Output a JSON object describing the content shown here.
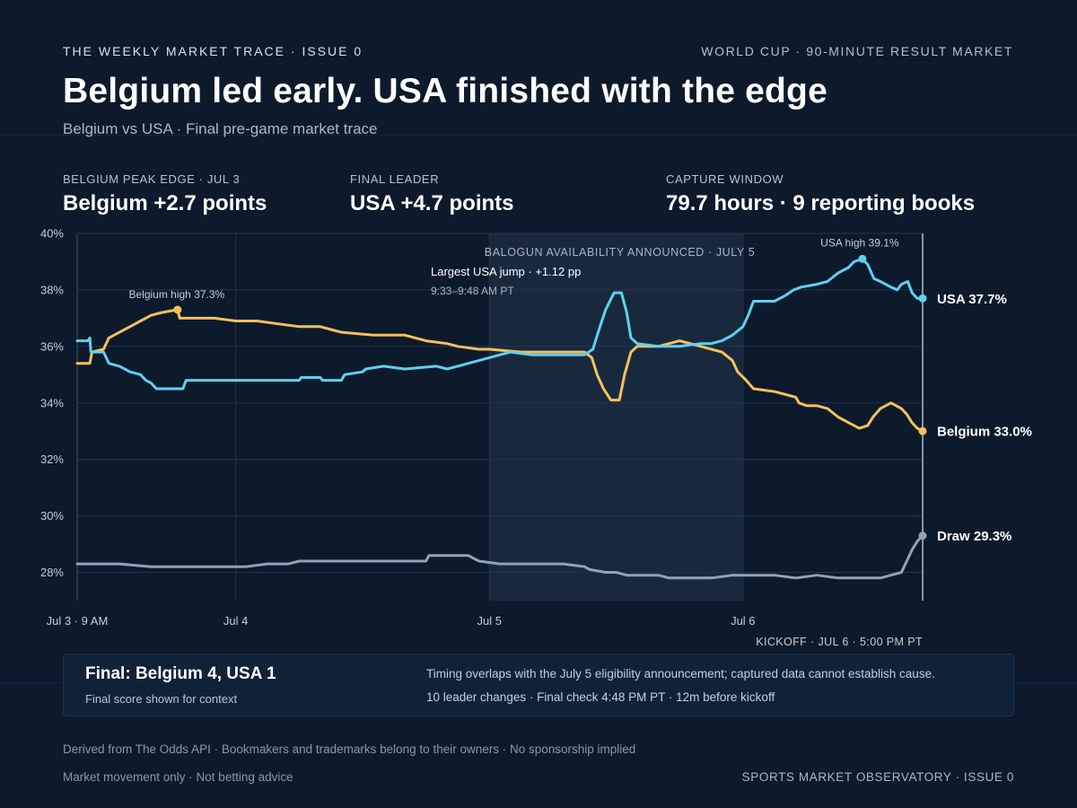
{
  "header": {
    "kicker": "THE WEEKLY MARKET TRACE · ISSUE 0",
    "kicker_right": "WORLD CUP · 90-MINUTE RESULT MARKET",
    "title": "Belgium led early. USA finished with the edge",
    "subtitle": "Belgium vs USA · Final pre-game market trace"
  },
  "stats": [
    {
      "label": "BELGIUM PEAK EDGE · JUL 3",
      "value": "Belgium +2.7 points"
    },
    {
      "label": "FINAL LEADER",
      "value": "USA +4.7 points"
    },
    {
      "label": "CAPTURE WINDOW",
      "value": "79.7 hours · 9 reporting books"
    }
  ],
  "chart_data": {
    "type": "line",
    "x_unit": "hours since Jul 3 9 AM",
    "xlim": [
      0,
      80
    ],
    "ylim": [
      27,
      40
    ],
    "y_ticks": [
      28,
      30,
      32,
      34,
      36,
      38,
      40
    ],
    "y_tick_labels": [
      "28%",
      "30%",
      "32%",
      "34%",
      "36%",
      "38%",
      "40%"
    ],
    "x_ticks": [
      {
        "x": 0,
        "label": "Jul 3 · 9 AM"
      },
      {
        "x": 15,
        "label": "Jul 4"
      },
      {
        "x": 39,
        "label": "Jul 5"
      },
      {
        "x": 63,
        "label": "Jul 6"
      }
    ],
    "grid": true,
    "highlight_region": {
      "x": [
        39,
        63
      ],
      "label": "BALOGUN AVAILABILITY ANNOUNCED · JULY 5"
    },
    "kickoff": {
      "x": 80,
      "label": "KICKOFF · JUL 6 · 5:00 PM PT"
    },
    "annotations": {
      "jump_title": "Largest USA jump · +1.12 pp",
      "jump_time": "9:33–9:48 AM PT",
      "belgium_high": "Belgium high 37.3%",
      "usa_high": "USA high 39.1%"
    },
    "series": [
      {
        "name": "USA",
        "end_label": "USA 37.7%",
        "color": "#5fd0f0",
        "points": [
          [
            0,
            36.2
          ],
          [
            1,
            36.2
          ],
          [
            1.2,
            36.3
          ],
          [
            1.3,
            35.8
          ],
          [
            2.5,
            35.8
          ],
          [
            3,
            35.4
          ],
          [
            4,
            35.3
          ],
          [
            5,
            35.1
          ],
          [
            6,
            35.0
          ],
          [
            6.5,
            34.8
          ],
          [
            7,
            34.7
          ],
          [
            7.5,
            34.5
          ],
          [
            10,
            34.5
          ],
          [
            10.3,
            34.8
          ],
          [
            13,
            34.8
          ],
          [
            20,
            34.8
          ],
          [
            21,
            34.8
          ],
          [
            21.2,
            34.9
          ],
          [
            23,
            34.9
          ],
          [
            23.2,
            34.8
          ],
          [
            25,
            34.8
          ],
          [
            25.3,
            35.0
          ],
          [
            27,
            35.1
          ],
          [
            27.3,
            35.2
          ],
          [
            29,
            35.3
          ],
          [
            31,
            35.2
          ],
          [
            34,
            35.3
          ],
          [
            35,
            35.2
          ],
          [
            36,
            35.3
          ],
          [
            38,
            35.5
          ],
          [
            39,
            35.6
          ],
          [
            41,
            35.8
          ],
          [
            43,
            35.7
          ],
          [
            48,
            35.7
          ],
          [
            48.8,
            35.9
          ],
          [
            49.3,
            36.5
          ],
          [
            50,
            37.3
          ],
          [
            50.8,
            37.9
          ],
          [
            51.5,
            37.9
          ],
          [
            52,
            37.2
          ],
          [
            52.4,
            36.3
          ],
          [
            53,
            36.1
          ],
          [
            55,
            36.0
          ],
          [
            57,
            36.0
          ],
          [
            59,
            36.1
          ],
          [
            60,
            36.1
          ],
          [
            61,
            36.2
          ],
          [
            62,
            36.4
          ],
          [
            63,
            36.7
          ],
          [
            63.5,
            37.1
          ],
          [
            64,
            37.6
          ],
          [
            66,
            37.6
          ],
          [
            67,
            37.8
          ],
          [
            67.8,
            38.0
          ],
          [
            68.5,
            38.1
          ],
          [
            70,
            38.2
          ],
          [
            71,
            38.3
          ],
          [
            72,
            38.6
          ],
          [
            73,
            38.8
          ],
          [
            73.5,
            39.0
          ],
          [
            74.3,
            39.1
          ],
          [
            74.8,
            38.9
          ],
          [
            75.4,
            38.4
          ],
          [
            76,
            38.3
          ],
          [
            77,
            38.1
          ],
          [
            77.6,
            38.0
          ],
          [
            78,
            38.2
          ],
          [
            78.6,
            38.3
          ],
          [
            79,
            37.9
          ],
          [
            79.5,
            37.7
          ],
          [
            80,
            37.7
          ]
        ]
      },
      {
        "name": "Belgium",
        "end_label": "Belgium 33.0%",
        "color": "#f5c05c",
        "points": [
          [
            0,
            35.4
          ],
          [
            1.2,
            35.4
          ],
          [
            1.4,
            35.8
          ],
          [
            2.5,
            35.9
          ],
          [
            3,
            36.3
          ],
          [
            4,
            36.5
          ],
          [
            5,
            36.7
          ],
          [
            6,
            36.9
          ],
          [
            7,
            37.1
          ],
          [
            8,
            37.2
          ],
          [
            9.5,
            37.3
          ],
          [
            9.7,
            37.0
          ],
          [
            11,
            37.0
          ],
          [
            13,
            37.0
          ],
          [
            15,
            36.9
          ],
          [
            17,
            36.9
          ],
          [
            19,
            36.8
          ],
          [
            21,
            36.7
          ],
          [
            23,
            36.7
          ],
          [
            24,
            36.6
          ],
          [
            25,
            36.5
          ],
          [
            28,
            36.4
          ],
          [
            31,
            36.4
          ],
          [
            32,
            36.3
          ],
          [
            33,
            36.2
          ],
          [
            35,
            36.1
          ],
          [
            36,
            36.0
          ],
          [
            38,
            35.9
          ],
          [
            39,
            35.9
          ],
          [
            42,
            35.8
          ],
          [
            45,
            35.8
          ],
          [
            48,
            35.8
          ],
          [
            48.7,
            35.6
          ],
          [
            49.2,
            35.0
          ],
          [
            49.8,
            34.5
          ],
          [
            50.5,
            34.1
          ],
          [
            51.3,
            34.1
          ],
          [
            51.8,
            35.0
          ],
          [
            52.4,
            35.8
          ],
          [
            53,
            36.0
          ],
          [
            55,
            36.0
          ],
          [
            56,
            36.1
          ],
          [
            57,
            36.2
          ],
          [
            58,
            36.1
          ],
          [
            59,
            36.0
          ],
          [
            60,
            35.9
          ],
          [
            61,
            35.8
          ],
          [
            62,
            35.5
          ],
          [
            62.5,
            35.1
          ],
          [
            63.3,
            34.8
          ],
          [
            64,
            34.5
          ],
          [
            66,
            34.4
          ],
          [
            67,
            34.3
          ],
          [
            68,
            34.2
          ],
          [
            68.3,
            34.0
          ],
          [
            69,
            33.9
          ],
          [
            70,
            33.9
          ],
          [
            71,
            33.8
          ],
          [
            72,
            33.5
          ],
          [
            73,
            33.3
          ],
          [
            74,
            33.1
          ],
          [
            74.8,
            33.2
          ],
          [
            75.3,
            33.5
          ],
          [
            76,
            33.8
          ],
          [
            77,
            34.0
          ],
          [
            78,
            33.8
          ],
          [
            78.5,
            33.6
          ],
          [
            79,
            33.3
          ],
          [
            79.5,
            33.1
          ],
          [
            80,
            33.0
          ]
        ]
      },
      {
        "name": "Draw",
        "end_label": "Draw 29.3%",
        "color": "#8fa3b6",
        "points": [
          [
            0,
            28.3
          ],
          [
            4,
            28.3
          ],
          [
            7,
            28.2
          ],
          [
            10,
            28.2
          ],
          [
            13,
            28.2
          ],
          [
            16,
            28.2
          ],
          [
            18,
            28.3
          ],
          [
            20,
            28.3
          ],
          [
            21,
            28.4
          ],
          [
            22,
            28.4
          ],
          [
            24,
            28.4
          ],
          [
            26,
            28.4
          ],
          [
            28,
            28.4
          ],
          [
            30,
            28.4
          ],
          [
            32,
            28.4
          ],
          [
            33,
            28.4
          ],
          [
            33.3,
            28.6
          ],
          [
            35,
            28.6
          ],
          [
            37,
            28.6
          ],
          [
            38,
            28.4
          ],
          [
            40,
            28.3
          ],
          [
            43,
            28.3
          ],
          [
            46,
            28.3
          ],
          [
            48,
            28.2
          ],
          [
            48.5,
            28.1
          ],
          [
            50,
            28.0
          ],
          [
            51,
            28.0
          ],
          [
            52,
            27.9
          ],
          [
            53,
            27.9
          ],
          [
            55,
            27.9
          ],
          [
            56,
            27.8
          ],
          [
            58,
            27.8
          ],
          [
            60,
            27.8
          ],
          [
            62,
            27.9
          ],
          [
            64,
            27.9
          ],
          [
            66,
            27.9
          ],
          [
            68,
            27.8
          ],
          [
            70,
            27.9
          ],
          [
            72,
            27.8
          ],
          [
            74,
            27.8
          ],
          [
            76,
            27.8
          ],
          [
            77,
            27.9
          ],
          [
            78,
            28.0
          ],
          [
            78.5,
            28.4
          ],
          [
            79,
            28.8
          ],
          [
            79.5,
            29.1
          ],
          [
            80,
            29.3
          ]
        ]
      }
    ]
  },
  "note": {
    "title": "Final: Belgium 4, USA 1",
    "subtitle": "Final score shown for context",
    "line1": "Timing overlaps with the July 5 eligibility announcement; captured data cannot establish cause.",
    "line2": "10 leader changes · Final check 4:48 PM PT · 12m before kickoff"
  },
  "footer": {
    "line1": "Derived from The Odds API · Bookmakers and trademarks belong to their owners · No sponsorship implied",
    "line2": "Market movement only · Not betting advice",
    "right": "SPORTS MARKET OBSERVATORY · ISSUE 0"
  }
}
